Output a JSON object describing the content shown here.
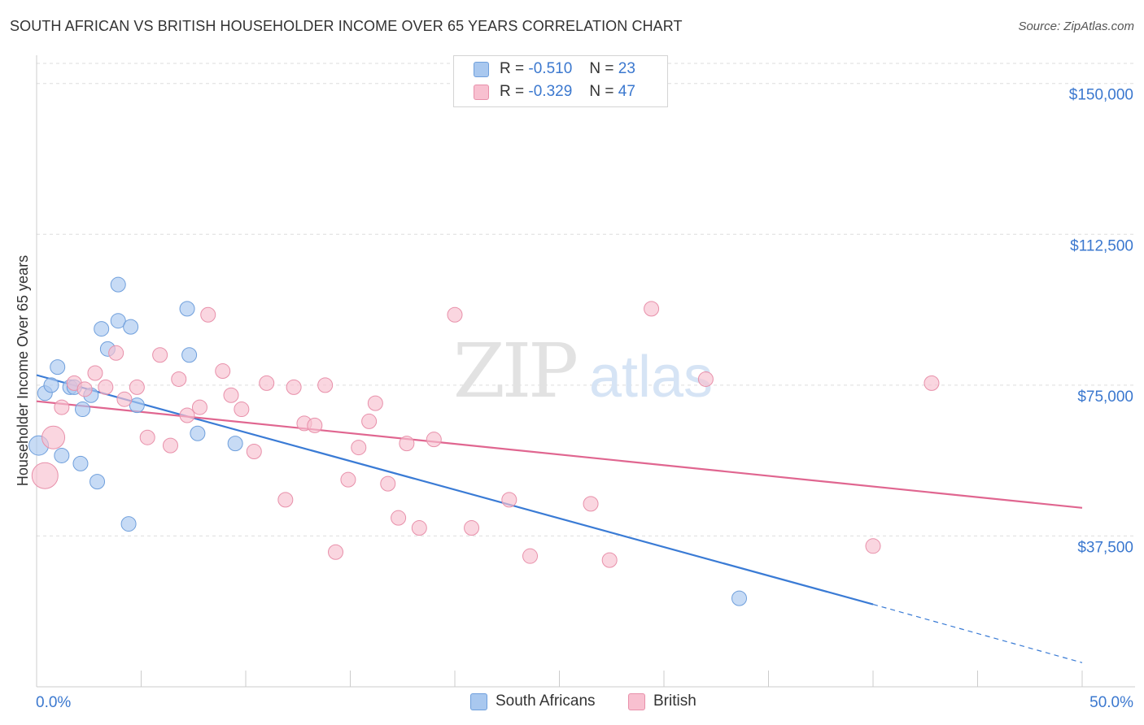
{
  "title": "SOUTH AFRICAN VS BRITISH HOUSEHOLDER INCOME OVER 65 YEARS CORRELATION CHART",
  "source": "Source: ZipAtlas.com",
  "watermark": {
    "zip": "ZIP",
    "atlas": "atlas"
  },
  "legend": {
    "r_label": "R =",
    "n_label": "N =",
    "rows": [
      {
        "r": "-0.510",
        "n": "23",
        "color": "#a9c8ef",
        "border": "#6f9fdc"
      },
      {
        "r": "-0.329",
        "n": "47",
        "color": "#f8c0d0",
        "border": "#e890aa"
      }
    ]
  },
  "bottom_legend": [
    "South Africans",
    "British"
  ],
  "chart_data": {
    "type": "scatter",
    "title": "SOUTH AFRICAN VS BRITISH HOUSEHOLDER INCOME OVER 65 YEARS CORRELATION CHART",
    "xlabel": "",
    "ylabel": "Householder Income Over 65 years",
    "xlim": [
      0,
      50
    ],
    "ylim": [
      0,
      155000
    ],
    "x_tick_labels": [
      "0.0%",
      "50.0%"
    ],
    "y_ticks": [
      37500,
      75000,
      112500,
      150000
    ],
    "y_tick_labels": [
      "$37,500",
      "$75,000",
      "$112,500",
      "$150,000"
    ],
    "grid": true,
    "legend_position": "top-center",
    "series": [
      {
        "name": "South Africans",
        "color": "#a9c8ef",
        "stroke": "#6f9fdc",
        "line_color": "#3a7bd5",
        "trend": {
          "x0": 0,
          "y0": 77500,
          "x1": 40,
          "y1": 20500,
          "dash_to_x": 50,
          "dash_to_y": 6000
        },
        "points": [
          {
            "x": 0.1,
            "y": 60000,
            "r": 12
          },
          {
            "x": 0.4,
            "y": 73000
          },
          {
            "x": 0.7,
            "y": 75000
          },
          {
            "x": 1.0,
            "y": 79500
          },
          {
            "x": 1.2,
            "y": 57500
          },
          {
            "x": 1.6,
            "y": 74500
          },
          {
            "x": 1.8,
            "y": 74500
          },
          {
            "x": 2.1,
            "y": 55500
          },
          {
            "x": 2.2,
            "y": 69000
          },
          {
            "x": 2.6,
            "y": 72500
          },
          {
            "x": 2.9,
            "y": 51000
          },
          {
            "x": 3.1,
            "y": 89000
          },
          {
            "x": 3.4,
            "y": 84000
          },
          {
            "x": 3.9,
            "y": 100000
          },
          {
            "x": 3.9,
            "y": 91000
          },
          {
            "x": 4.4,
            "y": 40500
          },
          {
            "x": 4.5,
            "y": 89500
          },
          {
            "x": 4.8,
            "y": 70000
          },
          {
            "x": 7.2,
            "y": 94000
          },
          {
            "x": 7.3,
            "y": 82500
          },
          {
            "x": 7.7,
            "y": 63000
          },
          {
            "x": 9.5,
            "y": 60500
          },
          {
            "x": 33.6,
            "y": 22000
          }
        ]
      },
      {
        "name": "British",
        "color": "#f8c0d0",
        "stroke": "#e890aa",
        "line_color": "#e06690",
        "trend": {
          "x0": 0,
          "y0": 71000,
          "x1": 50,
          "y1": 44500
        },
        "points": [
          {
            "x": 0.4,
            "y": 52500,
            "r": 16
          },
          {
            "x": 0.8,
            "y": 62000,
            "r": 14
          },
          {
            "x": 1.2,
            "y": 69500
          },
          {
            "x": 1.8,
            "y": 75500
          },
          {
            "x": 2.3,
            "y": 74000
          },
          {
            "x": 2.8,
            "y": 78000
          },
          {
            "x": 3.3,
            "y": 74500
          },
          {
            "x": 3.8,
            "y": 83000
          },
          {
            "x": 4.2,
            "y": 71500
          },
          {
            "x": 4.8,
            "y": 74500
          },
          {
            "x": 5.3,
            "y": 62000
          },
          {
            "x": 5.9,
            "y": 82500
          },
          {
            "x": 6.4,
            "y": 60000
          },
          {
            "x": 6.8,
            "y": 76500
          },
          {
            "x": 7.2,
            "y": 67500
          },
          {
            "x": 7.8,
            "y": 69500
          },
          {
            "x": 8.2,
            "y": 92500
          },
          {
            "x": 8.9,
            "y": 78500
          },
          {
            "x": 9.3,
            "y": 72500
          },
          {
            "x": 9.8,
            "y": 69000
          },
          {
            "x": 10.4,
            "y": 58500
          },
          {
            "x": 11.0,
            "y": 75500
          },
          {
            "x": 11.9,
            "y": 46500
          },
          {
            "x": 12.3,
            "y": 74500
          },
          {
            "x": 12.8,
            "y": 65500
          },
          {
            "x": 13.3,
            "y": 65000
          },
          {
            "x": 13.8,
            "y": 75000
          },
          {
            "x": 14.3,
            "y": 33500
          },
          {
            "x": 14.9,
            "y": 51500
          },
          {
            "x": 15.4,
            "y": 59500
          },
          {
            "x": 15.9,
            "y": 66000
          },
          {
            "x": 16.2,
            "y": 70500
          },
          {
            "x": 16.8,
            "y": 50500
          },
          {
            "x": 17.3,
            "y": 42000
          },
          {
            "x": 17.7,
            "y": 60500
          },
          {
            "x": 18.3,
            "y": 39500
          },
          {
            "x": 19.0,
            "y": 61500
          },
          {
            "x": 20.0,
            "y": 92500
          },
          {
            "x": 20.8,
            "y": 39500
          },
          {
            "x": 22.6,
            "y": 46500
          },
          {
            "x": 23.6,
            "y": 32500
          },
          {
            "x": 26.5,
            "y": 45500
          },
          {
            "x": 27.4,
            "y": 31500
          },
          {
            "x": 29.4,
            "y": 94000
          },
          {
            "x": 32.0,
            "y": 76500
          },
          {
            "x": 40.0,
            "y": 35000
          },
          {
            "x": 42.8,
            "y": 75500
          }
        ]
      }
    ]
  }
}
